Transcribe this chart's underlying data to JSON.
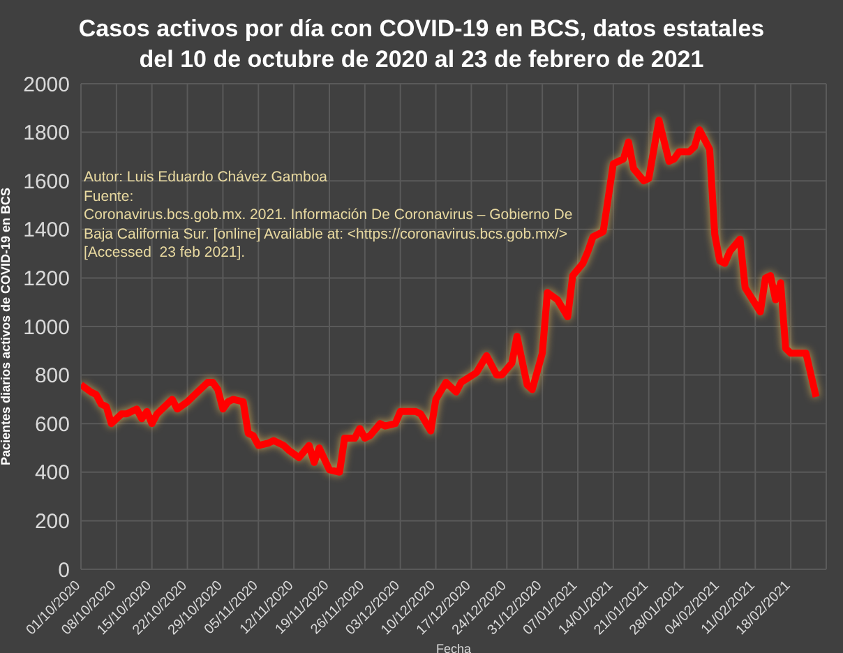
{
  "chart_data": {
    "type": "line",
    "title": "Casos activos por día con COVID-19 en BCS, datos estatales\ndel 10 de octubre de 2020 al 23 de febrero de 2021",
    "xlabel": "Fecha",
    "ylabel": "Pacientes diarios activos de COVID-19 en BCS",
    "annotations": [
      "Autor: Luis Eduardo Chávez Gamboa",
      "Fuente:",
      "Coronavirus.bcs.gob.mx. 2021. Información De Coronavirus – Gobierno De",
      "Baja California Sur. [online] Available at: <https://coronavirus.bcs.gob.mx/>",
      "[Accessed  23 feb 2021]."
    ],
    "x": [
      "2020-10-01",
      "2020-10-03",
      "2020-10-04",
      "2020-10-05",
      "2020-10-06",
      "2020-10-07",
      "2020-10-09",
      "2020-10-10",
      "2020-10-12",
      "2020-10-13",
      "2020-10-14",
      "2020-10-15",
      "2020-10-16",
      "2020-10-17",
      "2020-10-19",
      "2020-10-20",
      "2020-10-22",
      "2020-10-24",
      "2020-10-26",
      "2020-10-27",
      "2020-10-28",
      "2020-10-29",
      "2020-10-30",
      "2020-10-31",
      "2020-11-02",
      "2020-11-03",
      "2020-11-04",
      "2020-11-05",
      "2020-11-07",
      "2020-11-08",
      "2020-11-10",
      "2020-11-11",
      "2020-11-13",
      "2020-11-15",
      "2020-11-16",
      "2020-11-17",
      "2020-11-19",
      "2020-11-21",
      "2020-11-22",
      "2020-11-24",
      "2020-11-25",
      "2020-11-26",
      "2020-11-27",
      "2020-11-29",
      "2020-11-30",
      "2020-12-02",
      "2020-12-03",
      "2020-12-05",
      "2020-12-06",
      "2020-12-07",
      "2020-12-09",
      "2020-12-10",
      "2020-12-12",
      "2020-12-14",
      "2020-12-15",
      "2020-12-18",
      "2020-12-20",
      "2020-12-22",
      "2020-12-23",
      "2020-12-25",
      "2020-12-26",
      "2020-12-28",
      "2020-12-29",
      "2020-12-31",
      "2021-01-01",
      "2021-01-03",
      "2021-01-05",
      "2021-01-06",
      "2021-01-08",
      "2021-01-09",
      "2021-01-10",
      "2021-01-12",
      "2021-01-14",
      "2021-01-16",
      "2021-01-17",
      "2021-01-18",
      "2021-01-20",
      "2021-01-21",
      "2021-01-23",
      "2021-01-25",
      "2021-01-26",
      "2021-01-27",
      "2021-01-29",
      "2021-01-30",
      "2021-01-31",
      "2021-02-02",
      "2021-02-03",
      "2021-02-04",
      "2021-02-05",
      "2021-02-06",
      "2021-02-08",
      "2021-02-09",
      "2021-02-12",
      "2021-02-13",
      "2021-02-14",
      "2021-02-15",
      "2021-02-16",
      "2021-02-17",
      "2021-02-18",
      "2021-02-20",
      "2021-02-21",
      "2021-02-22",
      "2021-02-23"
    ],
    "series": [
      {
        "color": "#ff0000",
        "values": [
          760,
          730,
          720,
          680,
          670,
          600,
          640,
          640,
          660,
          620,
          650,
          600,
          640,
          660,
          700,
          660,
          690,
          730,
          770,
          770,
          740,
          660,
          690,
          700,
          690,
          560,
          550,
          510,
          520,
          530,
          510,
          490,
          460,
          510,
          440,
          500,
          410,
          400,
          540,
          540,
          580,
          540,
          550,
          600,
          590,
          600,
          650,
          650,
          650,
          640,
          570,
          700,
          770,
          730,
          770,
          810,
          880,
          800,
          800,
          850,
          960,
          760,
          740,
          890,
          1140,
          1110,
          1040,
          1210,
          1260,
          1310,
          1370,
          1390,
          1670,
          1690,
          1760,
          1650,
          1600,
          1610,
          1850,
          1680,
          1690,
          1720,
          1720,
          1740,
          1810,
          1730,
          1380,
          1270,
          1260,
          1310,
          1360,
          1160,
          1060,
          1200,
          1210,
          1110,
          1180,
          910,
          890,
          890,
          890,
          800,
          710
        ]
      }
    ],
    "xlim": [
      "2020-10-01",
      "2021-02-25"
    ],
    "xticks": [
      {
        "value": "2020-10-01",
        "label": "01/10/2020"
      },
      {
        "value": "2020-10-08",
        "label": "08/10/2020"
      },
      {
        "value": "2020-10-15",
        "label": "15/10/2020"
      },
      {
        "value": "2020-10-22",
        "label": "22/10/2020"
      },
      {
        "value": "2020-10-29",
        "label": "29/10/2020"
      },
      {
        "value": "2020-11-05",
        "label": "05/11/2020"
      },
      {
        "value": "2020-11-12",
        "label": "12/11/2020"
      },
      {
        "value": "2020-11-19",
        "label": "19/11/2020"
      },
      {
        "value": "2020-11-26",
        "label": "26/11/2020"
      },
      {
        "value": "2020-12-03",
        "label": "03/12/2020"
      },
      {
        "value": "2020-12-10",
        "label": "10/12/2020"
      },
      {
        "value": "2020-12-17",
        "label": "17/12/2020"
      },
      {
        "value": "2020-12-24",
        "label": "24/12/2020"
      },
      {
        "value": "2020-12-31",
        "label": "31/12/2020"
      },
      {
        "value": "2021-01-07",
        "label": "07/01/2021"
      },
      {
        "value": "2021-01-14",
        "label": "14/01/2021"
      },
      {
        "value": "2021-01-21",
        "label": "21/01/2021"
      },
      {
        "value": "2021-01-28",
        "label": "28/01/2021"
      },
      {
        "value": "2021-02-04",
        "label": "04/02/2021"
      },
      {
        "value": "2021-02-11",
        "label": "11/02/2021"
      },
      {
        "value": "2021-02-18",
        "label": "18/02/2021"
      }
    ],
    "ylim": [
      0,
      2000
    ],
    "yticks": [
      0,
      200,
      400,
      600,
      800,
      1000,
      1200,
      1400,
      1600,
      1800,
      2000
    ],
    "grid": true,
    "legend": false,
    "marker": "none",
    "line_style": "solid"
  }
}
